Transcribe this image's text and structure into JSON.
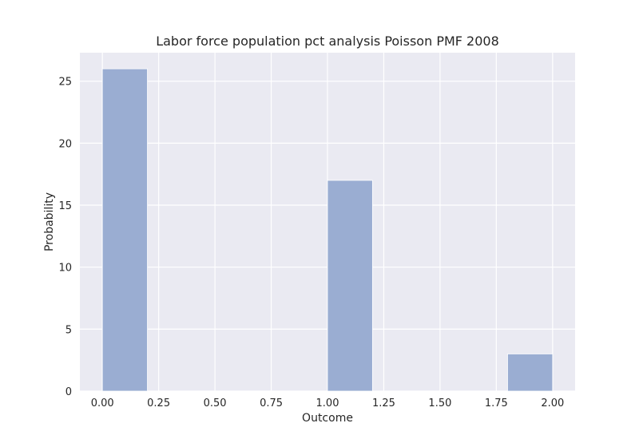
{
  "chart_data": {
    "type": "bar",
    "title": "Labor force population pct analysis Poisson PMF 2008",
    "xlabel": "Outcome",
    "ylabel": "Probability",
    "xlim": [
      -0.1,
      2.1
    ],
    "ylim": [
      0,
      27.3
    ],
    "xticks": [
      0.0,
      0.25,
      0.5,
      0.75,
      1.0,
      1.25,
      1.5,
      1.75,
      2.0
    ],
    "xtick_labels": [
      "0.00",
      "0.25",
      "0.50",
      "0.75",
      "1.00",
      "1.25",
      "1.50",
      "1.75",
      "2.00"
    ],
    "yticks": [
      0,
      5,
      10,
      15,
      20,
      25
    ],
    "ytick_labels": [
      "0",
      "5",
      "10",
      "15",
      "20",
      "25"
    ],
    "bars": [
      {
        "x_start": 0.0,
        "x_end": 0.2,
        "value": 26
      },
      {
        "x_start": 1.0,
        "x_end": 1.2,
        "value": 17
      },
      {
        "x_start": 1.8,
        "x_end": 2.0,
        "value": 3
      }
    ],
    "grid": true,
    "legend": "none",
    "colors": {
      "bar": "#9aadd2",
      "background": "#eaeaf2",
      "grid": "#ffffff",
      "text": "#262626"
    }
  }
}
